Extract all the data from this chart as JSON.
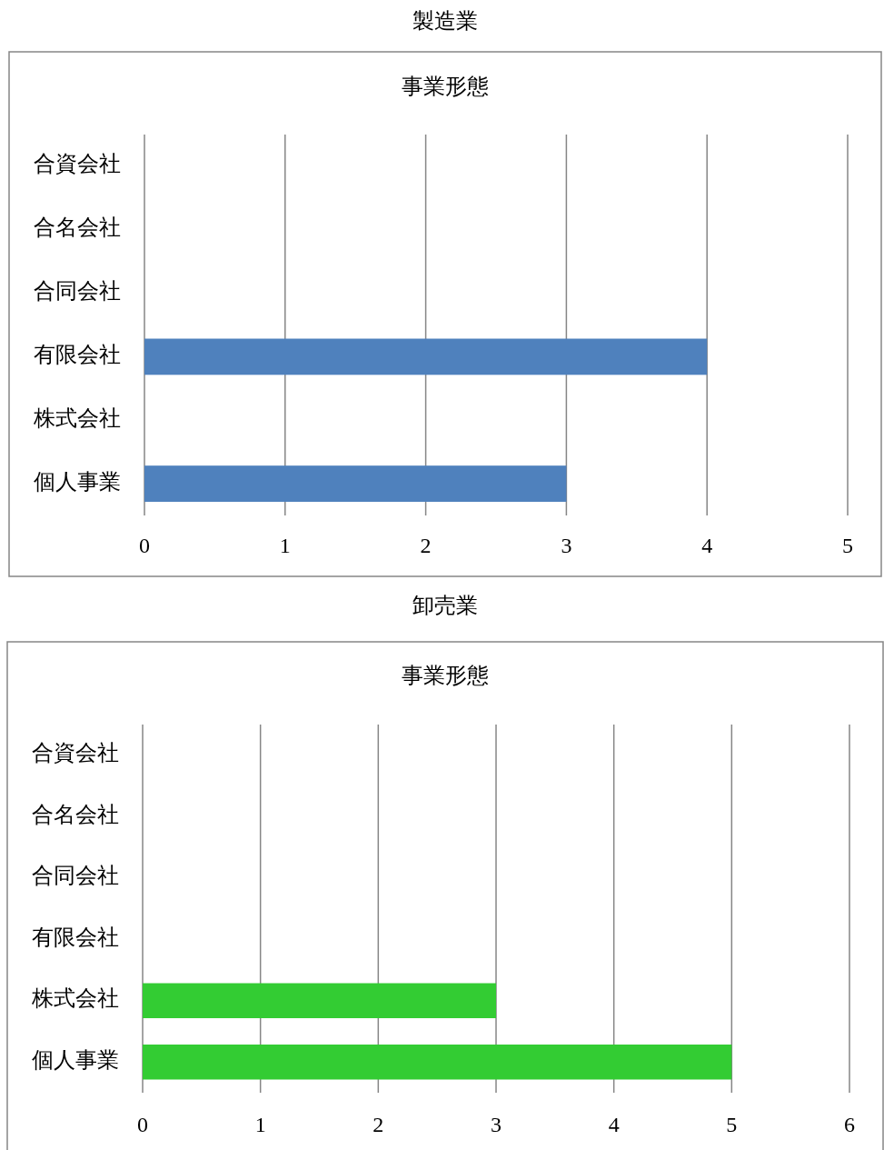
{
  "chart_data": [
    {
      "type": "bar",
      "orientation": "horizontal",
      "title": "製造業",
      "subtitle": "事業形態",
      "categories": [
        "合資会社",
        "合名会社",
        "合同会社",
        "有限会社",
        "株式会社",
        "個人事業"
      ],
      "values": [
        0,
        0,
        0,
        4,
        0,
        3
      ],
      "color": "#4f81bd",
      "xlim": [
        0,
        5
      ],
      "xticks": [
        0,
        1,
        2,
        3,
        4,
        5
      ],
      "grid": "x"
    },
    {
      "type": "bar",
      "orientation": "horizontal",
      "title": "卸売業",
      "subtitle": "事業形態",
      "categories": [
        "合資会社",
        "合名会社",
        "合同会社",
        "有限会社",
        "株式会社",
        "個人事業"
      ],
      "values": [
        0,
        0,
        0,
        0,
        3,
        5
      ],
      "color": "#33cc33",
      "xlim": [
        0,
        6
      ],
      "xticks": [
        0,
        1,
        2,
        3,
        4,
        5,
        6
      ],
      "grid": "x"
    }
  ]
}
